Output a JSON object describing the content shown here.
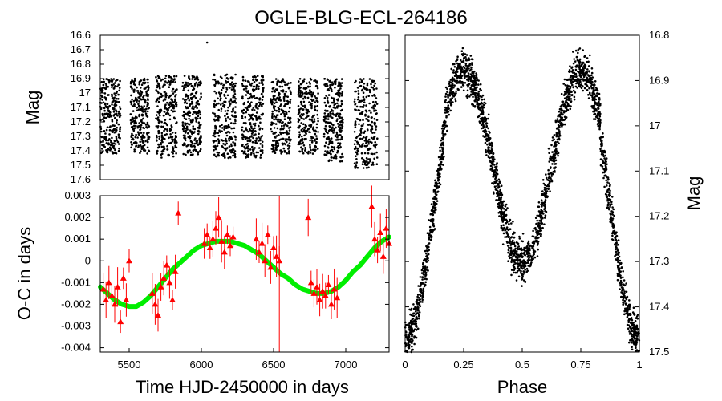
{
  "title": "OGLE-BLG-ECL-264186",
  "chart_data": [
    {
      "id": "lightcurve",
      "type": "scatter",
      "xlabel": "",
      "ylabel": "Mag",
      "xlim": [
        5300,
        7300
      ],
      "ylim": [
        17.6,
        16.6
      ],
      "y_inverted": true,
      "yticks": [
        "16.6",
        "16.7",
        "16.8",
        "16.9",
        "17",
        "17.1",
        "17.2",
        "17.3",
        "17.4",
        "17.5",
        "17.6"
      ],
      "ytick_values": [
        16.6,
        16.7,
        16.8,
        16.9,
        17.0,
        17.1,
        17.2,
        17.3,
        17.4,
        17.5,
        17.6
      ],
      "seasons": [
        {
          "x_start": 5300,
          "x_end": 5440,
          "mag_min": 16.9,
          "mag_max": 17.42
        },
        {
          "x_start": 5510,
          "x_end": 5640,
          "mag_min": 16.9,
          "mag_max": 17.42
        },
        {
          "x_start": 5685,
          "x_end": 5830,
          "mag_min": 16.88,
          "mag_max": 17.45
        },
        {
          "x_start": 5870,
          "x_end": 6000,
          "mag_min": 16.88,
          "mag_max": 17.43
        },
        {
          "x_start": 6080,
          "x_end": 6240,
          "mag_min": 16.87,
          "mag_max": 17.45
        },
        {
          "x_start": 6280,
          "x_end": 6430,
          "mag_min": 16.88,
          "mag_max": 17.45
        },
        {
          "x_start": 6480,
          "x_end": 6620,
          "mag_min": 16.9,
          "mag_max": 17.42
        },
        {
          "x_start": 6670,
          "x_end": 6810,
          "mag_min": 16.9,
          "mag_max": 17.42
        },
        {
          "x_start": 6850,
          "x_end": 6980,
          "mag_min": 16.9,
          "mag_max": 17.48
        },
        {
          "x_start": 7060,
          "x_end": 7220,
          "mag_min": 16.9,
          "mag_max": 17.52
        }
      ],
      "outliers": [
        {
          "x": 6040,
          "y": 16.65
        }
      ],
      "grid": false
    },
    {
      "id": "oc",
      "type": "scatter",
      "xlabel": "Time HJD-2450000 in days",
      "ylabel": "O-C in days",
      "xlim": [
        5300,
        7300
      ],
      "ylim": [
        -0.0042,
        0.003
      ],
      "xticks": [
        "5500",
        "6000",
        "6500",
        "7000"
      ],
      "xtick_values": [
        5500,
        6000,
        6500,
        7000
      ],
      "yticks": [
        "0.003",
        "0.002",
        "0.001",
        "0",
        "-0.001",
        "-0.002",
        "-0.003",
        "-0.004"
      ],
      "ytick_values": [
        0.003,
        0.002,
        0.001,
        0,
        -0.001,
        -0.002,
        -0.003,
        -0.004
      ],
      "series": [
        {
          "color": "#ff0000",
          "marker": "triangle",
          "points": [
            {
              "x": 5320,
              "y": -0.0013
            },
            {
              "x": 5340,
              "y": -0.0018
            },
            {
              "x": 5360,
              "y": -0.001
            },
            {
              "x": 5380,
              "y": -0.0016
            },
            {
              "x": 5400,
              "y": -0.002
            },
            {
              "x": 5420,
              "y": -0.0012
            },
            {
              "x": 5440,
              "y": -0.0028
            },
            {
              "x": 5460,
              "y": -0.0008
            },
            {
              "x": 5480,
              "y": -0.0018
            },
            {
              "x": 5500,
              "y": 0.0
            },
            {
              "x": 5660,
              "y": -0.0015
            },
            {
              "x": 5680,
              "y": -0.002
            },
            {
              "x": 5700,
              "y": -0.0025
            },
            {
              "x": 5720,
              "y": -0.0012
            },
            {
              "x": 5740,
              "y": -0.0008
            },
            {
              "x": 5760,
              "y": -0.0002
            },
            {
              "x": 5780,
              "y": -0.001
            },
            {
              "x": 5800,
              "y": -0.0018
            },
            {
              "x": 5820,
              "y": -0.0005
            },
            {
              "x": 5840,
              "y": 0.0022
            },
            {
              "x": 6020,
              "y": 0.0008
            },
            {
              "x": 6040,
              "y": 0.0012
            },
            {
              "x": 6060,
              "y": 0.0006
            },
            {
              "x": 6080,
              "y": 0.001
            },
            {
              "x": 6100,
              "y": 0.0015
            },
            {
              "x": 6120,
              "y": 0.002
            },
            {
              "x": 6140,
              "y": 0.0009
            },
            {
              "x": 6160,
              "y": 0.0004
            },
            {
              "x": 6180,
              "y": 0.0012
            },
            {
              "x": 6200,
              "y": 0.0007
            },
            {
              "x": 6220,
              "y": 0.0011
            },
            {
              "x": 6380,
              "y": 0.001
            },
            {
              "x": 6400,
              "y": 0.0004
            },
            {
              "x": 6420,
              "y": 0.0008
            },
            {
              "x": 6440,
              "y": 0.0
            },
            {
              "x": 6460,
              "y": 0.0012
            },
            {
              "x": 6480,
              "y": -0.0003
            },
            {
              "x": 6500,
              "y": 0.0006
            },
            {
              "x": 6520,
              "y": 0.0002
            },
            {
              "x": 6540,
              "y": 0.0
            },
            {
              "x": 6740,
              "y": 0.002
            },
            {
              "x": 6760,
              "y": -0.001
            },
            {
              "x": 6780,
              "y": -0.0015
            },
            {
              "x": 6800,
              "y": -0.0012
            },
            {
              "x": 6820,
              "y": -0.0018
            },
            {
              "x": 6840,
              "y": -0.0014
            },
            {
              "x": 6860,
              "y": -0.0016
            },
            {
              "x": 6880,
              "y": -0.0011
            },
            {
              "x": 6900,
              "y": -0.002
            },
            {
              "x": 6920,
              "y": -0.0013
            },
            {
              "x": 6940,
              "y": -0.0017
            },
            {
              "x": 7180,
              "y": 0.0025
            },
            {
              "x": 7200,
              "y": 0.001
            },
            {
              "x": 7220,
              "y": 0.0005
            },
            {
              "x": 7240,
              "y": 0.0013
            },
            {
              "x": 7260,
              "y": 0.0002
            },
            {
              "x": 7280,
              "y": 0.0015
            },
            {
              "x": 7300,
              "y": 0.0008
            }
          ]
        },
        {
          "color": "#00ee00",
          "type": "line",
          "x": [
            5300,
            5350,
            5400,
            5450,
            5500,
            5550,
            5600,
            5650,
            5700,
            5750,
            5800,
            5850,
            5900,
            5950,
            6000,
            6050,
            6100,
            6150,
            6200,
            6250,
            6300,
            6350,
            6400,
            6450,
            6500,
            6550,
            6600,
            6650,
            6700,
            6750,
            6800,
            6850,
            6900,
            6950,
            7000,
            7050,
            7100,
            7150,
            7200,
            7250,
            7300
          ],
          "y": [
            -0.0012,
            -0.0015,
            -0.0018,
            -0.002,
            -0.0021,
            -0.0021,
            -0.0019,
            -0.0016,
            -0.0012,
            -0.0008,
            -0.0004,
            -0.0001,
            0.0002,
            0.0005,
            0.0007,
            0.0008,
            0.0009,
            0.0009,
            0.0009,
            0.0008,
            0.0007,
            0.0005,
            0.0003,
            0.0,
            -0.0003,
            -0.0006,
            -0.0008,
            -0.0011,
            -0.0013,
            -0.0014,
            -0.0015,
            -0.0015,
            -0.0014,
            -0.0012,
            -0.0009,
            -0.0005,
            -0.0002,
            0.0002,
            0.0006,
            0.0009,
            0.0011
          ]
        }
      ],
      "grid": false
    },
    {
      "id": "phase",
      "type": "scatter",
      "xlabel": "Phase",
      "ylabel": "Mag",
      "xlim": [
        0,
        1
      ],
      "ylim": [
        17.5,
        16.8
      ],
      "y_inverted": true,
      "xticks": [
        "0",
        "0.25",
        "0.5",
        "0.75",
        "1"
      ],
      "xtick_values": [
        0,
        0.25,
        0.5,
        0.75,
        1
      ],
      "yticks": [
        "16.8",
        "16.9",
        "17",
        "17.1",
        "17.2",
        "17.3",
        "17.4",
        "17.5"
      ],
      "ytick_values": [
        16.8,
        16.9,
        17.0,
        17.1,
        17.2,
        17.3,
        17.4,
        17.5
      ],
      "model": {
        "max_mag": 16.88,
        "primary_min_mag": 17.47,
        "secondary_min_mag": 17.3,
        "scatter_mag": 0.045
      },
      "grid": false
    }
  ]
}
